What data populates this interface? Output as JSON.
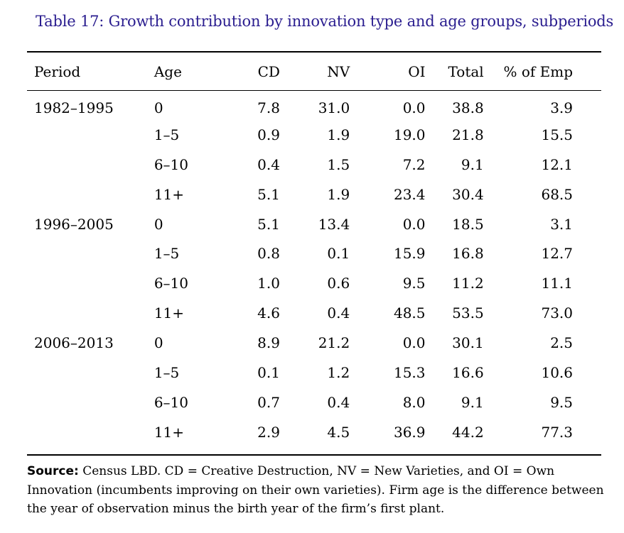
{
  "caption": "Table 17: Growth contribution by innovation type and age groups, subperiods",
  "table": {
    "headers": {
      "period": "Period",
      "age": "Age",
      "cd": "CD",
      "nv": "NV",
      "oi": "OI",
      "total": "Total",
      "emp": "% of Emp"
    },
    "rows": [
      {
        "period": "1982–1995",
        "age": "0",
        "cd": "7.8",
        "nv": "31.0",
        "oi": "0.0",
        "total": "38.8",
        "emp": "3.9"
      },
      {
        "period": "",
        "age": "1–5",
        "cd": "0.9",
        "nv": "1.9",
        "oi": "19.0",
        "total": "21.8",
        "emp": "15.5"
      },
      {
        "period": "",
        "age": "6–10",
        "cd": "0.4",
        "nv": "1.5",
        "oi": "7.2",
        "total": "9.1",
        "emp": "12.1"
      },
      {
        "period": "",
        "age": "11+",
        "cd": "5.1",
        "nv": "1.9",
        "oi": "23.4",
        "total": "30.4",
        "emp": "68.5"
      },
      {
        "period": "1996–2005",
        "age": "0",
        "cd": "5.1",
        "nv": "13.4",
        "oi": "0.0",
        "total": "18.5",
        "emp": "3.1"
      },
      {
        "period": "",
        "age": "1–5",
        "cd": "0.8",
        "nv": "0.1",
        "oi": "15.9",
        "total": "16.8",
        "emp": "12.7"
      },
      {
        "period": "",
        "age": "6–10",
        "cd": "1.0",
        "nv": "0.6",
        "oi": "9.5",
        "total": "11.2",
        "emp": "11.1"
      },
      {
        "period": "",
        "age": "11+",
        "cd": "4.6",
        "nv": "0.4",
        "oi": "48.5",
        "total": "53.5",
        "emp": "73.0"
      },
      {
        "period": "2006–2013",
        "age": "0",
        "cd": "8.9",
        "nv": "21.2",
        "oi": "0.0",
        "total": "30.1",
        "emp": "2.5"
      },
      {
        "period": "",
        "age": "1–5",
        "cd": "0.1",
        "nv": "1.2",
        "oi": "15.3",
        "total": "16.6",
        "emp": "10.6"
      },
      {
        "period": "",
        "age": "6–10",
        "cd": "0.7",
        "nv": "0.4",
        "oi": "8.0",
        "total": "9.1",
        "emp": "9.5"
      },
      {
        "period": "",
        "age": "11+",
        "cd": "2.9",
        "nv": "4.5",
        "oi": "36.9",
        "total": "44.2",
        "emp": "77.3"
      }
    ]
  },
  "footnote": {
    "label": "Source:",
    "text": "Census LBD. CD = Creative Destruction, NV = New Varieties, and OI = Own Innovation (incumbents improving on their own varieties). Firm age is the difference between the year of observation minus the birth year of the firm’s first plant."
  }
}
